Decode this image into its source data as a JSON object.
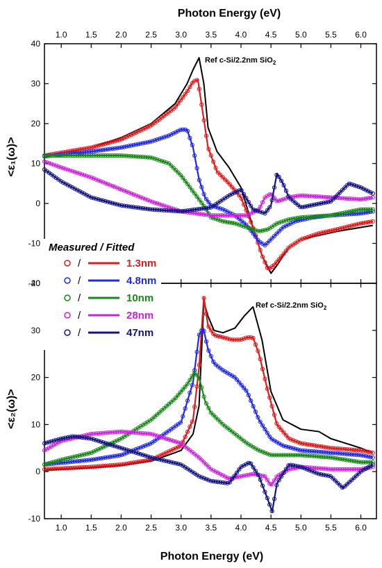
{
  "chart_data": [
    {
      "type": "line",
      "panel": "top",
      "xlabel": "Photon Energy (eV)",
      "ylabel": "<ε₁(ω)>",
      "xlim": [
        0.72,
        6.26
      ],
      "ylim": [
        -20,
        40
      ],
      "xticks": [
        1.0,
        1.5,
        2.0,
        2.5,
        3.0,
        3.5,
        4.0,
        4.5,
        5.0,
        5.5,
        6.0
      ],
      "xtick_labels": [
        "1.0",
        "1.5",
        "2.0",
        "2.5",
        "3.0",
        "3.5",
        "4.0",
        "4.5",
        "5.0",
        "5.5",
        "6.0"
      ],
      "yticks": [
        -20,
        -10,
        0,
        10,
        20,
        30,
        40
      ],
      "ytick_labels": [
        "-20",
        "-10",
        "0",
        "10",
        "20",
        "30",
        "40"
      ],
      "annotation": "Ref c-Si/2.2nm SiO",
      "annotation_sub": "2",
      "reference": {
        "x": [
          0.72,
          1.5,
          2.0,
          2.5,
          2.9,
          3.1,
          3.2,
          3.3,
          3.38,
          3.45,
          3.6,
          3.8,
          4.0,
          4.2,
          4.35,
          4.5,
          4.6,
          4.8,
          5.0,
          5.3,
          5.6,
          6.0,
          6.2
        ],
        "y": [
          12.0,
          14.0,
          16.5,
          20.0,
          25.0,
          30.0,
          33.5,
          36.5,
          30.0,
          19.0,
          13.0,
          9.0,
          4.0,
          -6.0,
          -13.0,
          -17.5,
          -15.5,
          -11.0,
          -9.0,
          -8.0,
          -7.0,
          -6.0,
          -5.5
        ]
      },
      "series": [
        {
          "name": "1.3nm",
          "color": "#e0191b",
          "x": [
            0.72,
            1.5,
            2.0,
            2.5,
            2.9,
            3.1,
            3.2,
            3.28,
            3.35,
            3.45,
            3.6,
            3.8,
            4.0,
            4.2,
            4.35,
            4.45,
            4.55,
            4.8,
            5.0,
            5.3,
            5.6,
            6.0,
            6.2
          ],
          "y": [
            12.0,
            14.0,
            16.0,
            19.5,
            24.0,
            28.0,
            30.5,
            31.0,
            24.0,
            14.0,
            8.0,
            5.0,
            1.5,
            -6.0,
            -13.0,
            -16.5,
            -15.5,
            -11.0,
            -9.0,
            -7.5,
            -6.5,
            -5.0,
            -4.5
          ]
        },
        {
          "name": "4.8nm",
          "color": "#1f28e6",
          "x": [
            0.72,
            1.5,
            2.0,
            2.5,
            2.8,
            3.0,
            3.1,
            3.2,
            3.3,
            3.4,
            3.5,
            3.7,
            3.9,
            4.1,
            4.3,
            4.4,
            4.5,
            4.7,
            4.9,
            5.2,
            5.5,
            6.0,
            6.2
          ],
          "y": [
            11.8,
            13.0,
            14.0,
            15.5,
            17.0,
            18.5,
            18.5,
            14.0,
            6.0,
            1.5,
            -0.5,
            -1.5,
            -3.0,
            -5.5,
            -9.5,
            -10.5,
            -9.0,
            -6.0,
            -4.5,
            -3.5,
            -3.0,
            -2.5,
            -2.0
          ]
        },
        {
          "name": "10nm",
          "color": "#178717",
          "x": [
            0.72,
            1.0,
            1.5,
            2.0,
            2.5,
            2.8,
            3.0,
            3.2,
            3.4,
            3.5,
            3.7,
            3.9,
            4.1,
            4.3,
            4.45,
            4.6,
            4.8,
            5.0,
            5.5,
            6.0,
            6.2
          ],
          "y": [
            12.0,
            12.0,
            12.0,
            12.0,
            11.5,
            10.0,
            7.0,
            3.0,
            -1.0,
            -3.5,
            -4.5,
            -5.0,
            -6.0,
            -7.0,
            -6.5,
            -5.0,
            -4.0,
            -3.5,
            -3.0,
            -1.5,
            -1.5
          ]
        },
        {
          "name": "28nm",
          "color": "#cc22dd",
          "x": [
            0.72,
            1.0,
            1.5,
            2.0,
            2.5,
            3.0,
            3.5,
            3.9,
            4.1,
            4.3,
            4.4,
            4.5,
            4.6,
            4.8,
            5.0,
            5.5,
            6.0,
            6.2
          ],
          "y": [
            10.5,
            9.0,
            6.5,
            3.5,
            0.5,
            -2.0,
            -3.0,
            -3.0,
            -3.0,
            -1.5,
            1.5,
            2.5,
            0.5,
            1.5,
            2.0,
            1.5,
            1.0,
            1.5
          ]
        },
        {
          "name": "47nm",
          "color": "#121482",
          "x": [
            0.72,
            1.0,
            1.5,
            2.0,
            2.5,
            3.0,
            3.5,
            3.8,
            4.0,
            4.2,
            4.4,
            4.5,
            4.6,
            4.7,
            4.8,
            5.0,
            5.5,
            5.8,
            6.0,
            6.2
          ],
          "y": [
            8.5,
            5.5,
            1.5,
            -0.5,
            -1.5,
            -2.0,
            -1.0,
            2.0,
            3.5,
            -1.5,
            -2.5,
            -0.5,
            7.5,
            5.0,
            1.5,
            -1.0,
            0.5,
            5.0,
            4.0,
            2.5
          ]
        }
      ]
    },
    {
      "type": "line",
      "panel": "bottom",
      "xlabel": "Photon Energy (eV)",
      "ylabel": "<ε₂(ω)>",
      "xlim": [
        0.72,
        6.26
      ],
      "ylim": [
        -10,
        40
      ],
      "xticks": [
        1.0,
        1.5,
        2.0,
        2.5,
        3.0,
        3.5,
        4.0,
        4.5,
        5.0,
        5.5,
        6.0
      ],
      "xtick_labels": [
        "1.0",
        "1.5",
        "2.0",
        "2.5",
        "3.0",
        "3.5",
        "4.0",
        "4.5",
        "5.0",
        "5.5",
        "6.0"
      ],
      "yticks": [
        -10,
        0,
        10,
        20,
        30,
        40
      ],
      "ytick_labels": [
        "-10",
        "0",
        "10",
        "20",
        "30",
        "40"
      ],
      "annotation": "Ref c-Si/2.2nm SiO",
      "annotation_sub": "2",
      "reference": {
        "x": [
          0.72,
          1.5,
          2.0,
          2.5,
          3.0,
          3.2,
          3.3,
          3.38,
          3.45,
          3.55,
          3.7,
          3.9,
          4.05,
          4.2,
          4.35,
          4.5,
          4.7,
          5.0,
          5.3,
          5.5,
          6.0,
          6.2
        ],
        "y": [
          0.3,
          0.8,
          1.3,
          2.2,
          4.5,
          8.0,
          14.0,
          36.0,
          33.0,
          30.0,
          29.5,
          30.5,
          33.0,
          35.0,
          28.0,
          17.0,
          11.0,
          9.0,
          8.5,
          7.0,
          5.0,
          4.0
        ]
      },
      "series": [
        {
          "name": "1.3nm",
          "color": "#e0191b",
          "x": [
            0.72,
            1.5,
            2.0,
            2.5,
            3.0,
            3.2,
            3.3,
            3.38,
            3.45,
            3.55,
            3.7,
            3.85,
            4.0,
            4.1,
            4.2,
            4.3,
            4.45,
            4.6,
            4.8,
            5.0,
            5.5,
            6.0,
            6.2
          ],
          "y": [
            0.5,
            1.0,
            1.5,
            2.5,
            5.5,
            11.0,
            22.0,
            37.0,
            31.0,
            29.0,
            28.5,
            28.0,
            28.0,
            28.5,
            28.5,
            25.0,
            17.0,
            10.0,
            7.0,
            6.0,
            5.0,
            4.5,
            4.0
          ]
        },
        {
          "name": "4.8nm",
          "color": "#1f28e6",
          "x": [
            0.72,
            1.5,
            2.0,
            2.5,
            3.0,
            3.2,
            3.3,
            3.37,
            3.45,
            3.55,
            3.7,
            3.9,
            4.1,
            4.3,
            4.5,
            4.7,
            5.0,
            5.5,
            6.0,
            6.2
          ],
          "y": [
            1.5,
            2.5,
            3.5,
            6.0,
            10.5,
            19.0,
            29.0,
            30.5,
            26.0,
            23.0,
            21.5,
            20.0,
            17.0,
            11.0,
            7.0,
            5.5,
            4.5,
            4.0,
            3.5,
            3.0
          ]
        },
        {
          "name": "10nm",
          "color": "#178717",
          "x": [
            0.72,
            1.0,
            1.5,
            2.0,
            2.5,
            2.9,
            3.1,
            3.22,
            3.3,
            3.4,
            3.5,
            3.7,
            3.9,
            4.1,
            4.3,
            4.5,
            4.7,
            5.0,
            5.5,
            6.0,
            6.2
          ],
          "y": [
            1.5,
            2.5,
            4.0,
            7.0,
            11.0,
            15.5,
            18.5,
            21.0,
            20.0,
            15.0,
            12.5,
            10.0,
            8.0,
            6.0,
            4.5,
            3.5,
            3.5,
            3.5,
            3.0,
            2.0,
            2.0
          ]
        },
        {
          "name": "28nm",
          "color": "#cc22dd",
          "x": [
            0.72,
            1.0,
            1.5,
            2.0,
            2.5,
            3.0,
            3.3,
            3.5,
            3.8,
            4.0,
            4.2,
            4.4,
            4.5,
            4.6,
            4.8,
            5.0,
            5.5,
            6.0,
            6.2
          ],
          "y": [
            4.5,
            6.5,
            8.0,
            8.5,
            8.0,
            6.0,
            3.0,
            0.5,
            -1.5,
            -1.0,
            -0.5,
            -1.0,
            -3.0,
            -1.0,
            0.5,
            1.0,
            0.5,
            0.5,
            1.0
          ]
        },
        {
          "name": "47nm",
          "color": "#121482",
          "x": [
            0.72,
            1.0,
            1.2,
            1.5,
            2.0,
            2.5,
            3.0,
            3.3,
            3.5,
            3.8,
            4.0,
            4.15,
            4.3,
            4.45,
            4.52,
            4.6,
            4.8,
            5.0,
            5.3,
            5.5,
            5.7,
            6.0,
            6.2
          ],
          "y": [
            6.0,
            7.0,
            7.5,
            7.0,
            5.0,
            3.0,
            1.5,
            -1.0,
            -2.0,
            -2.5,
            1.0,
            2.0,
            -1.0,
            -6.0,
            -8.5,
            -2.5,
            1.5,
            1.0,
            -0.5,
            -1.0,
            -3.5,
            0.0,
            1.5
          ]
        }
      ]
    }
  ],
  "legend": {
    "title": "Measured / Fitted",
    "separator": "/",
    "entries": [
      {
        "label": "1.3nm",
        "color": "#e0191b"
      },
      {
        "label": "4.8nm",
        "color": "#1f28e6"
      },
      {
        "label": "10nm",
        "color": "#178717"
      },
      {
        "label": "28nm",
        "color": "#cc22dd"
      },
      {
        "label": "47nm",
        "color": "#121482"
      }
    ]
  },
  "reference_color": "#000000"
}
